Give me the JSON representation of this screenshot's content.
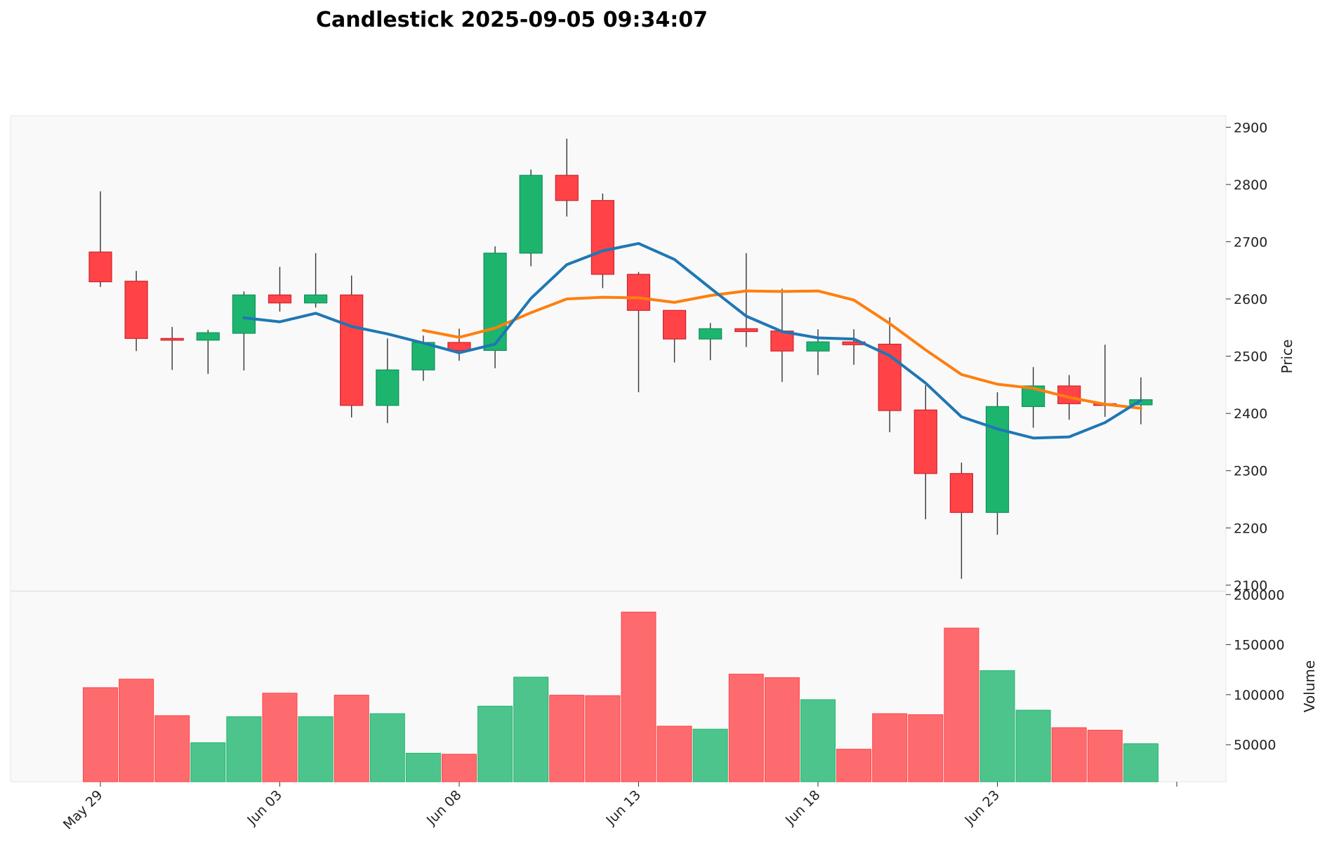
{
  "chart_data": {
    "type": "candlestick",
    "title": "Candlestick 2025-09-05 09:34:07",
    "ylabel_price": "Price",
    "ylabel_volume": "Volume",
    "price_ylim": [
      2090,
      2920
    ],
    "volume_ylim": [
      13000,
      203000
    ],
    "price_ticks": [
      2100,
      2200,
      2300,
      2400,
      2500,
      2600,
      2700,
      2800,
      2900
    ],
    "volume_ticks": [
      50000,
      100000,
      150000,
      200000
    ],
    "x_ticks": [
      {
        "index": 0,
        "label": "May 29"
      },
      {
        "index": 5,
        "label": "Jun 03"
      },
      {
        "index": 10,
        "label": "Jun 08"
      },
      {
        "index": 15,
        "label": "Jun 13"
      },
      {
        "index": 20,
        "label": "Jun 18"
      },
      {
        "index": 25,
        "label": "Jun 23"
      },
      {
        "index": 30,
        "label": ""
      }
    ],
    "up_color": "#1db56e",
    "down_color": "#ff4347",
    "ma_short_color": "#1f77b4",
    "ma_long_color": "#ff7f0e",
    "dates": [
      "2025-05-29",
      "2025-05-30",
      "2025-05-31",
      "2025-06-01",
      "2025-06-02",
      "2025-06-03",
      "2025-06-04",
      "2025-06-05",
      "2025-06-06",
      "2025-06-07",
      "2025-06-08",
      "2025-06-09",
      "2025-06-10",
      "2025-06-11",
      "2025-06-12",
      "2025-06-13",
      "2025-06-14",
      "2025-06-15",
      "2025-06-16",
      "2025-06-17",
      "2025-06-18",
      "2025-06-19",
      "2025-06-20",
      "2025-06-21",
      "2025-06-22",
      "2025-06-23",
      "2025-06-24",
      "2025-06-25",
      "2025-06-26",
      "2025-06-27"
    ],
    "ohlc": [
      {
        "o": 2682,
        "h": 2788,
        "l": 2621,
        "c": 2630
      },
      {
        "o": 2631,
        "h": 2649,
        "l": 2509,
        "c": 2531
      },
      {
        "o": 2531,
        "h": 2551,
        "l": 2476,
        "c": 2528
      },
      {
        "o": 2528,
        "h": 2546,
        "l": 2469,
        "c": 2541
      },
      {
        "o": 2540,
        "h": 2613,
        "l": 2475,
        "c": 2607
      },
      {
        "o": 2607,
        "h": 2656,
        "l": 2578,
        "c": 2593
      },
      {
        "o": 2593,
        "h": 2680,
        "l": 2585,
        "c": 2607
      },
      {
        "o": 2607,
        "h": 2641,
        "l": 2393,
        "c": 2414
      },
      {
        "o": 2414,
        "h": 2531,
        "l": 2383,
        "c": 2476
      },
      {
        "o": 2476,
        "h": 2536,
        "l": 2457,
        "c": 2524
      },
      {
        "o": 2524,
        "h": 2548,
        "l": 2492,
        "c": 2510
      },
      {
        "o": 2510,
        "h": 2692,
        "l": 2479,
        "c": 2680
      },
      {
        "o": 2680,
        "h": 2826,
        "l": 2657,
        "c": 2816
      },
      {
        "o": 2816,
        "h": 2880,
        "l": 2744,
        "c": 2772
      },
      {
        "o": 2772,
        "h": 2784,
        "l": 2619,
        "c": 2643
      },
      {
        "o": 2643,
        "h": 2647,
        "l": 2437,
        "c": 2580
      },
      {
        "o": 2580,
        "h": 2580,
        "l": 2489,
        "c": 2530
      },
      {
        "o": 2530,
        "h": 2558,
        "l": 2493,
        "c": 2548
      },
      {
        "o": 2548,
        "h": 2680,
        "l": 2516,
        "c": 2543
      },
      {
        "o": 2544,
        "h": 2618,
        "l": 2455,
        "c": 2509
      },
      {
        "o": 2509,
        "h": 2547,
        "l": 2467,
        "c": 2525
      },
      {
        "o": 2525,
        "h": 2547,
        "l": 2485,
        "c": 2520
      },
      {
        "o": 2521,
        "h": 2568,
        "l": 2367,
        "c": 2405
      },
      {
        "o": 2406,
        "h": 2449,
        "l": 2215,
        "c": 2295
      },
      {
        "o": 2295,
        "h": 2314,
        "l": 2111,
        "c": 2227
      },
      {
        "o": 2227,
        "h": 2437,
        "l": 2188,
        "c": 2412
      },
      {
        "o": 2412,
        "h": 2481,
        "l": 2375,
        "c": 2448
      },
      {
        "o": 2448,
        "h": 2467,
        "l": 2389,
        "c": 2417
      },
      {
        "o": 2417,
        "h": 2520,
        "l": 2394,
        "c": 2415
      },
      {
        "o": 2415,
        "h": 2463,
        "l": 2381,
        "c": 2424
      }
    ],
    "volume": [
      107000,
      115500,
      79000,
      52000,
      78000,
      101500,
      78000,
      99500,
      81000,
      41500,
      40500,
      88500,
      117500,
      99500,
      99000,
      182500,
      68500,
      65500,
      120500,
      117000,
      95000,
      45500,
      81000,
      80000,
      166500,
      124000,
      84500,
      67000,
      64500,
      51000
    ],
    "ma_short": [
      null,
      null,
      null,
      null,
      2567,
      2560,
      2575,
      2552,
      2539,
      2523,
      2506,
      2521,
      2601,
      2660,
      2684,
      2697,
      2669,
      2619,
      2570,
      2543,
      2532,
      2530,
      2501,
      2453,
      2394,
      2373,
      2357,
      2359,
      2384,
      2423
    ],
    "ma_long": [
      null,
      null,
      null,
      null,
      null,
      null,
      null,
      null,
      null,
      2545,
      2533,
      2549,
      2576,
      2600,
      2603,
      2602,
      2594,
      2606,
      2614,
      2613,
      2614,
      2598,
      2557,
      2511,
      2468,
      2451,
      2444,
      2428,
      2416,
      2409
    ]
  }
}
